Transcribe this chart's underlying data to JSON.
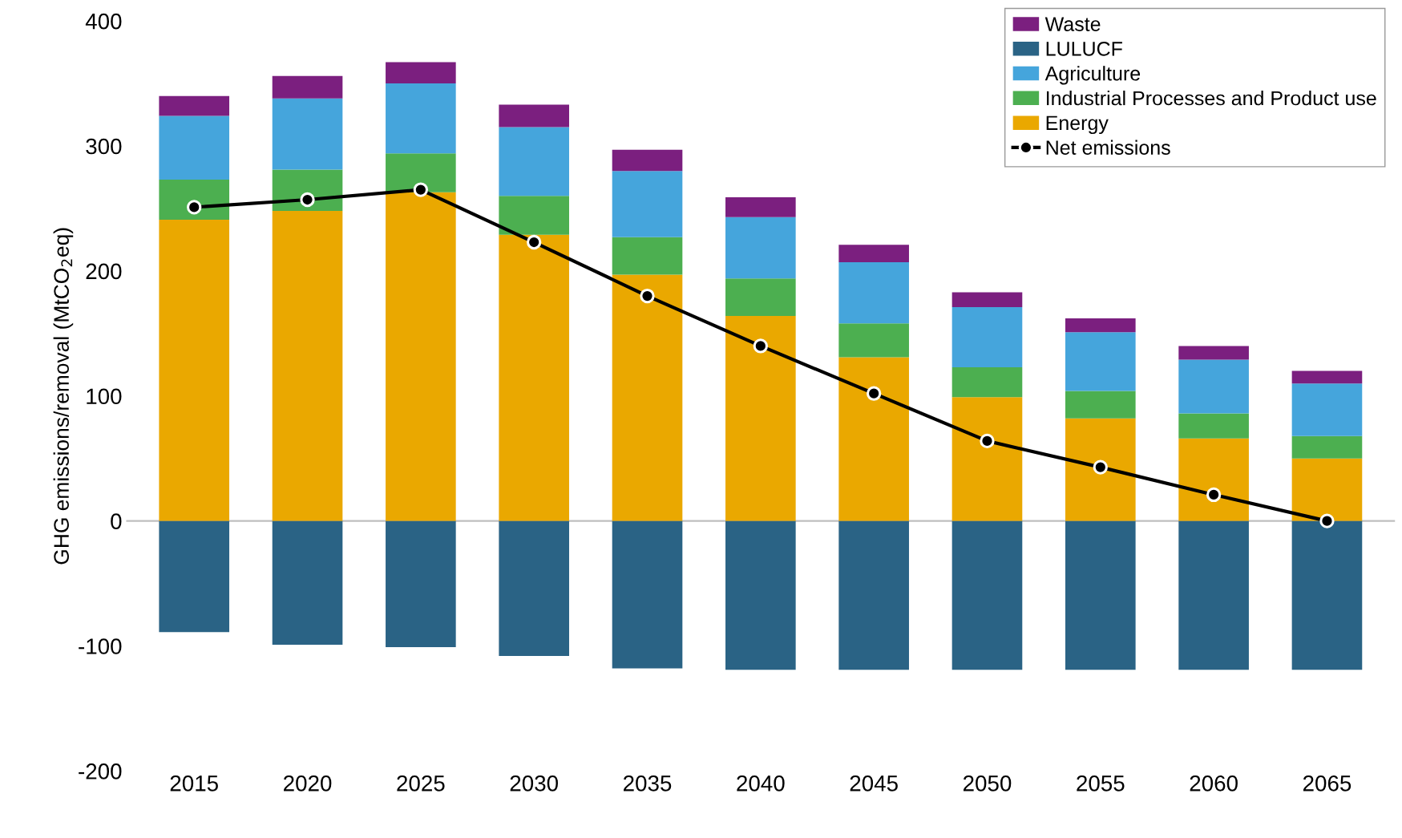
{
  "chart_data": {
    "type": "bar",
    "stacked": true,
    "ylabel": "GHG emissions/removal (MtCO$_{2}$eq)",
    "categories": [
      "2015",
      "2020",
      "2025",
      "2030",
      "2035",
      "2040",
      "2045",
      "2050",
      "2055",
      "2060",
      "2065"
    ],
    "series": [
      {
        "name": "Energy",
        "color": "#eaa800",
        "values": [
          241,
          248,
          263,
          229,
          197,
          164,
          131,
          99,
          82,
          66,
          50
        ]
      },
      {
        "name": "Industrial Processes and Product use",
        "color": "#4caf50",
        "values": [
          32,
          33,
          31,
          31,
          30,
          30,
          27,
          24,
          22,
          20,
          18
        ]
      },
      {
        "name": "Agriculture",
        "color": "#45a5dc",
        "values": [
          51,
          57,
          56,
          55,
          53,
          49,
          49,
          48,
          47,
          43,
          42
        ]
      },
      {
        "name": "LULUCF",
        "color": "#2a6385",
        "values": [
          -89,
          -99,
          -101,
          -108,
          -118,
          -119,
          -119,
          -119,
          -119,
          -119,
          -119
        ]
      },
      {
        "name": "Waste",
        "color": "#7b1f7f",
        "values": [
          16,
          18,
          17,
          18,
          17,
          16,
          14,
          12,
          11,
          11,
          10
        ]
      },
      {
        "name": "Net emissions",
        "type": "line",
        "color": "#000000",
        "marker": "circle",
        "values": [
          251,
          257,
          265,
          223,
          180,
          140,
          102,
          64,
          43,
          21,
          0
        ]
      }
    ],
    "ylim": [
      -200,
      400
    ],
    "yticks": [
      {
        "value": -200,
        "label": "-200"
      },
      {
        "value": -100,
        "label": "-100"
      },
      0,
      100,
      200,
      300,
      400
    ],
    "ref_lines": [
      {
        "axis": "y",
        "value": 0,
        "color": "#bfbfbf"
      }
    ],
    "legend": "top right",
    "grid": false
  }
}
